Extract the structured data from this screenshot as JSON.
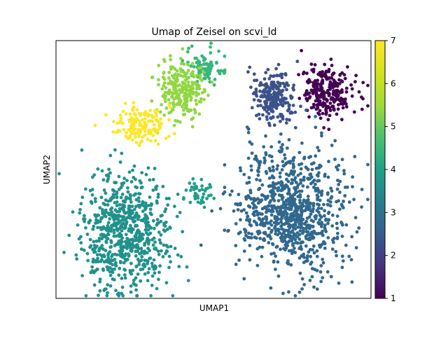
{
  "chart_data": {
    "type": "scatter",
    "title": "Umap of Zeisel on scvi_ld",
    "xlabel": "UMAP1",
    "ylabel": "UMAP2",
    "x_ticks_shown": false,
    "y_ticks_shown": false,
    "grid": false,
    "colormap": "viridis",
    "color_scale": {
      "min": 1,
      "max": 7,
      "ticks": [
        "1",
        "2",
        "3",
        "4",
        "5",
        "6",
        "7"
      ]
    },
    "clusters": [
      {
        "value": 1,
        "color": "#440154",
        "center": [
          0.86,
          0.8
        ],
        "spread": [
          0.075,
          0.095
        ],
        "count": 260
      },
      {
        "value": 2,
        "color": "#3b528b",
        "center": [
          0.69,
          0.78
        ],
        "spread": [
          0.06,
          0.095
        ],
        "count": 230
      },
      {
        "value": 3,
        "color": "#31688e",
        "center": [
          0.75,
          0.34
        ],
        "spread": [
          0.16,
          0.22
        ],
        "count": 900
      },
      {
        "value": 4,
        "color": "#21918c",
        "center": [
          0.22,
          0.26
        ],
        "spread": [
          0.13,
          0.2
        ],
        "count": 720
      },
      {
        "value": 4.6,
        "color": "#1f9e89",
        "center": [
          0.45,
          0.4
        ],
        "spread": [
          0.05,
          0.05
        ],
        "count": 40
      },
      {
        "value": 5,
        "color": "#35b779",
        "center": [
          0.47,
          0.89
        ],
        "spread": [
          0.06,
          0.06
        ],
        "count": 90
      },
      {
        "value": 6,
        "color": "#90d743",
        "center": [
          0.4,
          0.81
        ],
        "spread": [
          0.07,
          0.1
        ],
        "count": 230
      },
      {
        "value": 7,
        "color": "#fde725",
        "center": [
          0.27,
          0.67
        ],
        "spread": [
          0.075,
          0.06
        ],
        "count": 150
      }
    ]
  }
}
